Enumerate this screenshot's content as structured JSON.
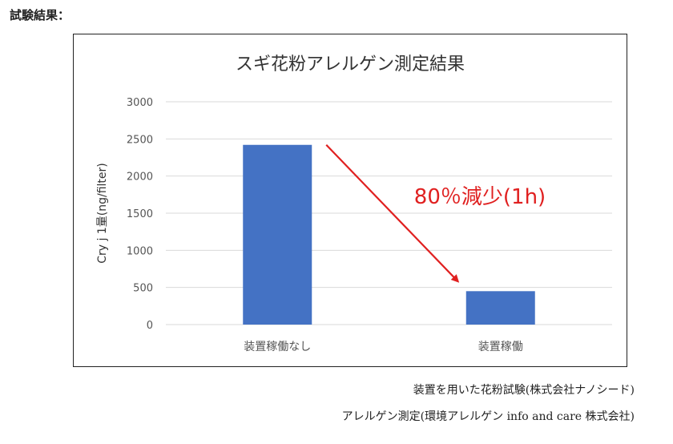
{
  "page": {
    "heading": "試験結果：",
    "captions": [
      "装置を用いた花粉試験(株式会社ナノシード)",
      "アレルゲン測定(環境アレルゲン info and care 株式会社)"
    ]
  },
  "chart_data": {
    "type": "bar",
    "title": "スギ花粉アレルゲン測定結果",
    "ylabel": "Cry j 1量(ng/filter)",
    "xlabel": "",
    "categories": [
      "装置稼働なし",
      "装置稼働"
    ],
    "values": [
      2420,
      450
    ],
    "ylim": [
      0,
      3000
    ],
    "yticks": [
      0,
      500,
      1000,
      1500,
      2000,
      2500,
      3000
    ],
    "grid": true,
    "bar_color": "#4472C4",
    "annotation": {
      "text": "80％減少(1h)",
      "color": "#E02020",
      "from_category": 0,
      "to_category": 1
    }
  }
}
